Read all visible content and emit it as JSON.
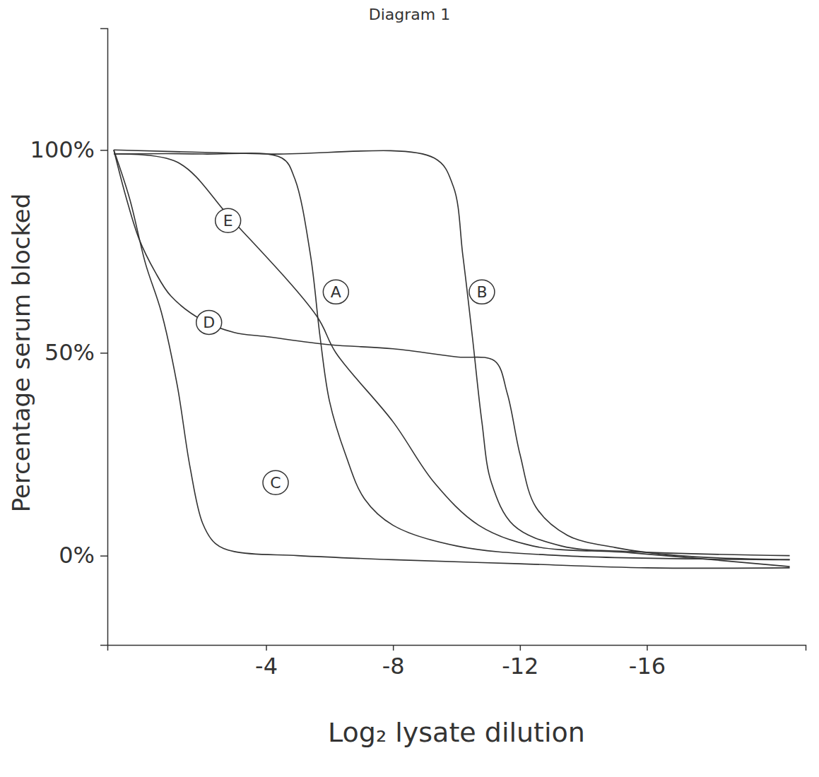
{
  "chart_data": {
    "type": "line",
    "title": "Diagram 1",
    "x_label": "Log₂ lysate dilution",
    "y_label": "Percentage serum blocked",
    "xlim": [
      1,
      -21
    ],
    "ylim": [
      -22,
      130
    ],
    "xticks": [
      -4,
      -8,
      -12,
      -16
    ],
    "yticks": [
      {
        "value": 0,
        "label": "0%"
      },
      {
        "value": 50,
        "label": "50%"
      },
      {
        "value": 100,
        "label": "100%"
      }
    ],
    "grid": false,
    "series": [
      {
        "name": "A",
        "color": "#333333",
        "x": [
          0.8,
          -2,
          -4.5,
          -4.9,
          -5.4,
          -5.7,
          -6,
          -6.5,
          -7.1,
          -8,
          -10,
          -13.3,
          -20.5
        ],
        "values": [
          99,
          99,
          98,
          93,
          74,
          54,
          38,
          25,
          14,
          7.5,
          2.4,
          0,
          -1
        ]
      },
      {
        "name": "B",
        "color": "#333333",
        "x": [
          0.8,
          -4,
          -9.3,
          -9.9,
          -10.2,
          -10.5,
          -10.8,
          -11.1,
          -11.8,
          -13.3,
          -15.5,
          -20.5
        ],
        "values": [
          100,
          99,
          98,
          91,
          74,
          54,
          33,
          18,
          7.5,
          2.4,
          1,
          0
        ]
      },
      {
        "name": "C",
        "color": "#333333",
        "x": [
          0.8,
          0.3,
          -0.2,
          -0.7,
          -1.2,
          -1.6,
          -2,
          -2.4,
          -3,
          -5,
          -8,
          -12,
          -16,
          -20.5
        ],
        "values": [
          100,
          88,
          72,
          60,
          42,
          22,
          8,
          3,
          1,
          0,
          -1,
          -2,
          -3,
          -3
        ]
      },
      {
        "name": "D",
        "color": "#333333",
        "x": [
          0.8,
          0.4,
          0,
          -0.5,
          -1,
          -2,
          -3,
          -4,
          -6,
          -8,
          -10,
          -11.2,
          -11.6,
          -12,
          -12.5,
          -13.5,
          -15,
          -17,
          -20.5
        ],
        "values": [
          100,
          88,
          78,
          70,
          64,
          58,
          55,
          54,
          52,
          51,
          49,
          48,
          40,
          25,
          12,
          5,
          2,
          0,
          -1
        ]
      },
      {
        "name": "E",
        "color": "#333333",
        "x": [
          0.8,
          -1.2,
          -2.9,
          -5.6,
          -6.2,
          -8,
          -9.3,
          -10.7,
          -12.4,
          -15.5,
          -20.5
        ],
        "values": [
          99,
          97,
          83,
          59,
          50,
          33,
          18,
          7.5,
          2.4,
          0.7,
          -2.7
        ]
      }
    ]
  }
}
